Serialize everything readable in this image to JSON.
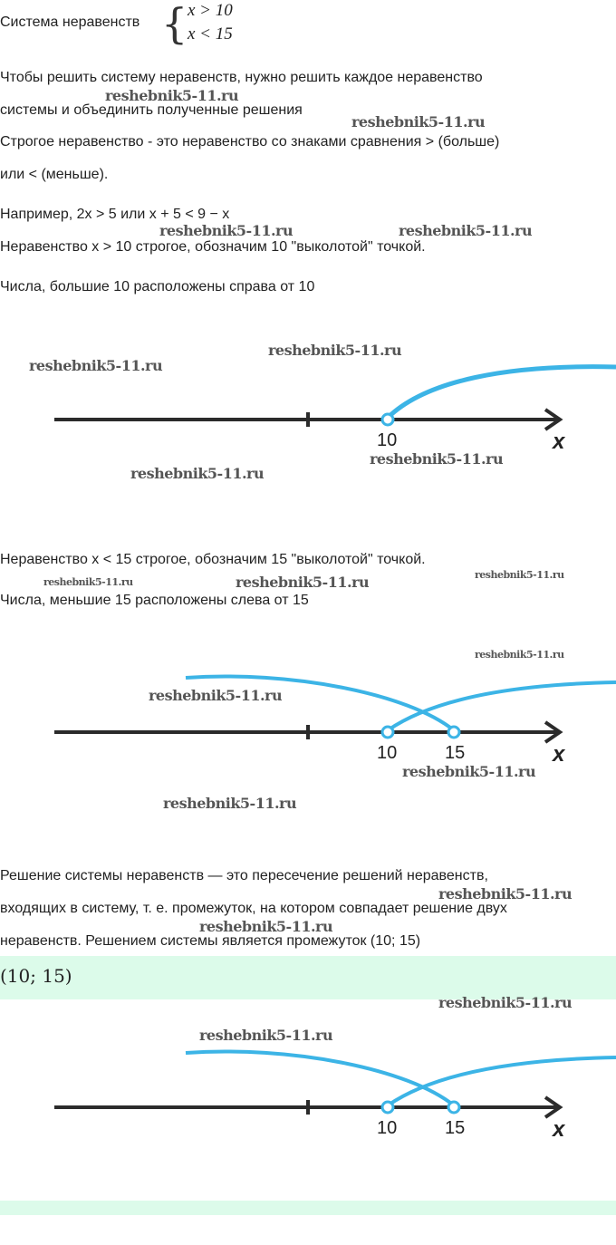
{
  "system": {
    "label": "Система неравенств",
    "line1": "x > 10",
    "line2": "x < 15"
  },
  "paragraphs": {
    "p1a": "Чтобы решить систему неравенств, нужно решить каждое неравенство",
    "p1b": "системы и объединить полученные решения",
    "p2a": "Строгое неравенство - это неравенство со знаками сравнения > (больше)",
    "p2b": "или < (меньше).",
    "p3": "Например, 2x > 5 или x + 5 < 9 − x",
    "p4": "Неравенство x > 10 строгое, обозначим 10 \"выколотой\" точкой.",
    "p5": "Числа, большие 10 расположены справа от 10",
    "p6": "Неравенство x < 15 строгое, обозначим 15 \"выколотой\" точкой.",
    "p7": "Числа, меньшие 15 расположены слева от 15",
    "p8a": "Решение системы неравенств — это пересечение решений неравенств,",
    "p8b": "входящих в систему, т. е. промежуток, на котором совпадает решение двух",
    "p8c": "неравенств. Решением системы является промежуток (10; 15)"
  },
  "answer": "(10; 15)",
  "number_lines": {
    "axis_label": "x",
    "point_a": "10",
    "point_b": "15",
    "line_color": "#2b2b2b",
    "arc_color": "#3cb4e6"
  },
  "watermark": "reshebnik5-11.ru",
  "colors": {
    "answer_bg": "#dcfbea"
  }
}
